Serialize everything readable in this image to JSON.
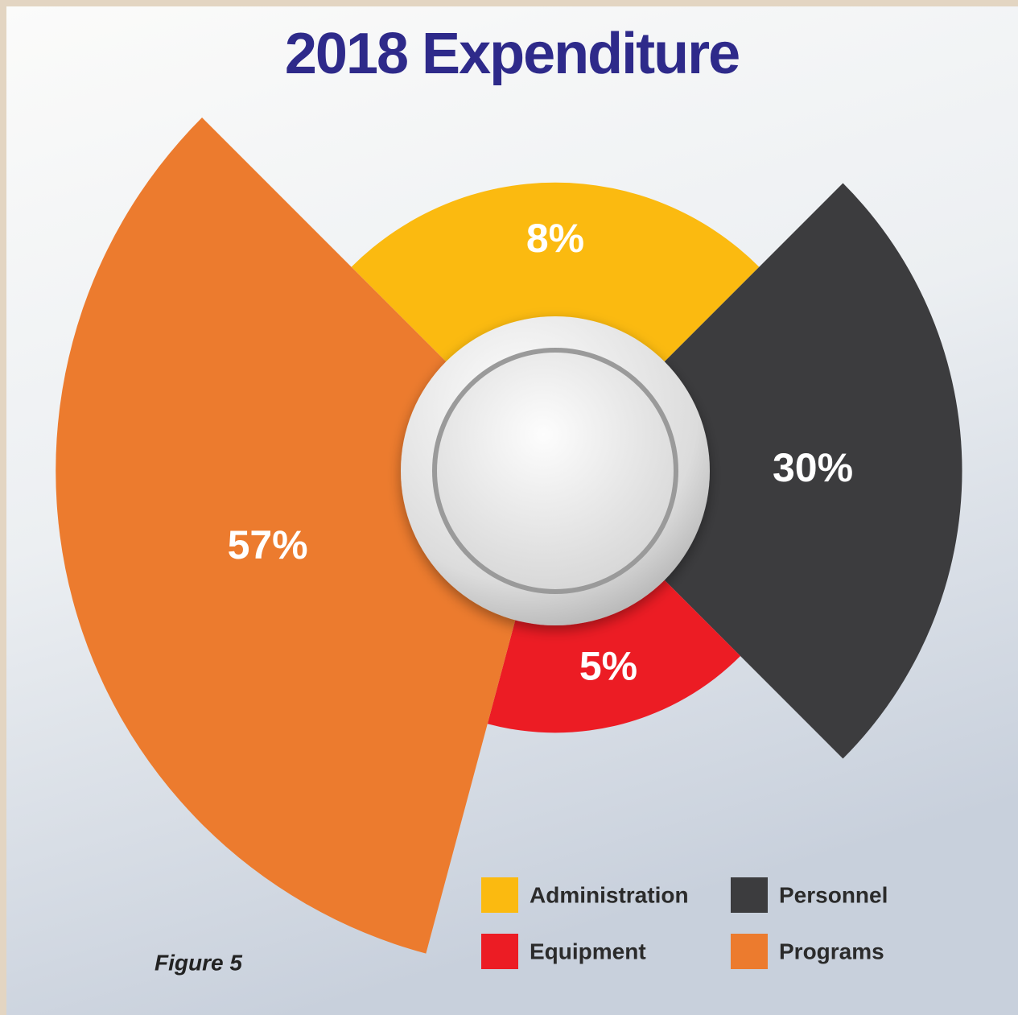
{
  "chart_data": {
    "type": "pie",
    "title": "2018 Expenditure",
    "categories": [
      "Administration",
      "Personnel",
      "Equipment",
      "Programs"
    ],
    "values": [
      8,
      30,
      5,
      57
    ],
    "value_labels": [
      "8%",
      "30%",
      "5%",
      "57%"
    ],
    "colors": [
      "#fbba10",
      "#3c3c3e",
      "#ec1c24",
      "#ec7b2e"
    ],
    "caption": "Figure 5"
  }
}
